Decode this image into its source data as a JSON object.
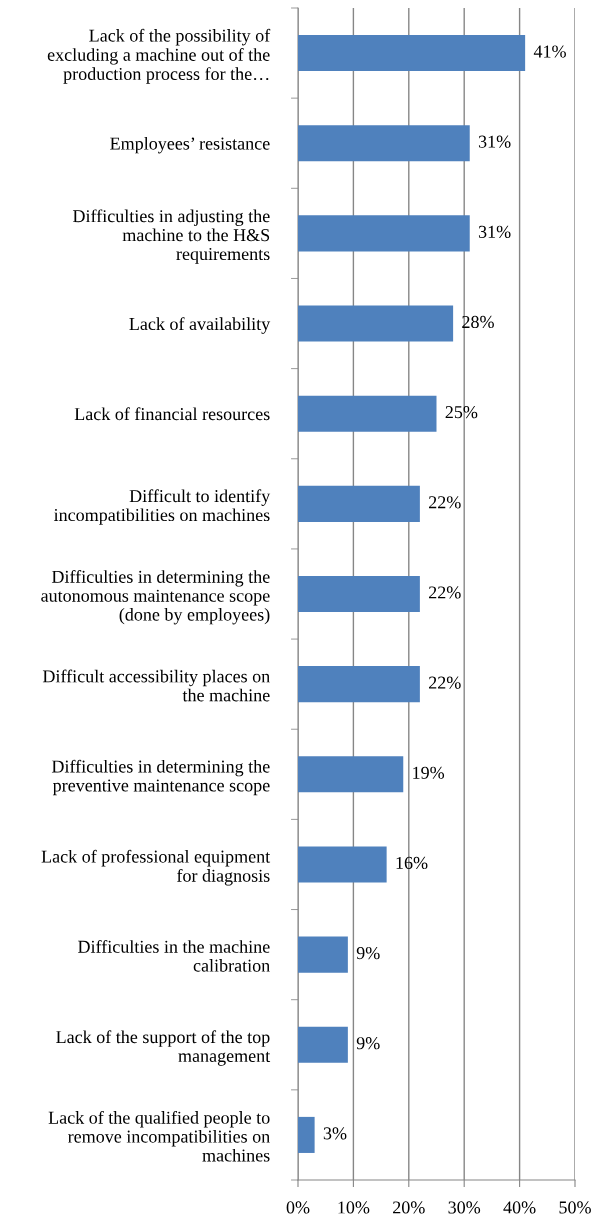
{
  "chart_data": {
    "type": "bar",
    "orientation": "horizontal",
    "categories": [
      "Lack of the possibility of\nexcluding a machine out of the\nproduction process for the…",
      "Employees’ resistance",
      "Difficulties in adjusting the\nmachine to the H&S\nrequirements",
      "Lack of availability",
      "Lack of financial resources",
      "Difficult to identify\nincompatibilities on machines",
      "Difficulties in determining the\nautonomous maintenance scope\n(done by employees)",
      "Difficult accessibility places on\nthe machine",
      "Difficulties in determining the\npreventive maintenance scope",
      "Lack of professional equipment\nfor diagnosis",
      "Difficulties in the machine\ncalibration",
      "Lack of the support of the top\nmanagement",
      "Lack of the qualified people to\nremove incompatibilities on\nmachines"
    ],
    "values": [
      41,
      31,
      31,
      28,
      25,
      22,
      22,
      22,
      19,
      16,
      9,
      9,
      3
    ],
    "value_labels": [
      "41%",
      "31%",
      "31%",
      "28%",
      "25%",
      "22%",
      "22%",
      "22%",
      "19%",
      "16%",
      "9%",
      "9%",
      "3%"
    ],
    "color": "#4f81bd",
    "xlim": [
      0,
      50
    ],
    "xticks": [
      {
        "value": 0,
        "label": "0%"
      },
      {
        "value": 10,
        "label": "10%"
      },
      {
        "value": 20,
        "label": "20%"
      },
      {
        "value": 30,
        "label": "30%"
      },
      {
        "value": 40,
        "label": "40%"
      },
      {
        "value": 50,
        "label": "50%"
      }
    ],
    "grid": "x",
    "legend": false
  }
}
